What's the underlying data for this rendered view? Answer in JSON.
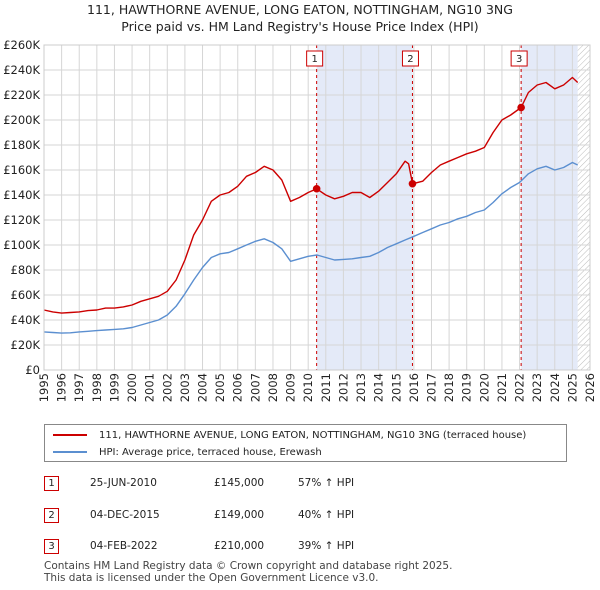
{
  "title_line1": "111, HAWTHORNE AVENUE, LONG EATON, NOTTINGHAM, NG10 3NG",
  "title_line2": "Price paid vs. HM Land Registry's House Price Index (HPI)",
  "colors": {
    "property": "#cc0000",
    "hpi": "#5b8fd0",
    "shade": "#e4eaf8",
    "grid": "#d6d6d6"
  },
  "chart_data": {
    "type": "line",
    "x_range": [
      1995,
      2026
    ],
    "y_range": [
      0,
      260000
    ],
    "y_ticks": [
      {
        "value": 0,
        "label": "£0"
      },
      {
        "value": 20000,
        "label": "£20K"
      },
      {
        "value": 40000,
        "label": "£40K"
      },
      {
        "value": 60000,
        "label": "£60K"
      },
      {
        "value": 80000,
        "label": "£80K"
      },
      {
        "value": 100000,
        "label": "£100K"
      },
      {
        "value": 120000,
        "label": "£120K"
      },
      {
        "value": 140000,
        "label": "£140K"
      },
      {
        "value": 160000,
        "label": "£160K"
      },
      {
        "value": 180000,
        "label": "£180K"
      },
      {
        "value": 200000,
        "label": "£200K"
      },
      {
        "value": 220000,
        "label": "£220K"
      },
      {
        "value": 240000,
        "label": "£240K"
      },
      {
        "value": 260000,
        "label": "£260K"
      }
    ],
    "x_ticks": [
      "1995",
      "1996",
      "1997",
      "1998",
      "1999",
      "2000",
      "2001",
      "2002",
      "2003",
      "2004",
      "2005",
      "2006",
      "2007",
      "2008",
      "2009",
      "2010",
      "2011",
      "2012",
      "2013",
      "2014",
      "2015",
      "2016",
      "2017",
      "2018",
      "2019",
      "2020",
      "2021",
      "2022",
      "2023",
      "2024",
      "2025",
      "2026"
    ],
    "shaded_ranges": [
      [
        2010.48,
        2015.92
      ],
      [
        2022.09,
        2025.3
      ]
    ],
    "future_hatch_start": 2025.3,
    "series": [
      {
        "name": "111, HAWTHORNE AVENUE, LONG EATON, NOTTINGHAM, NG10 3NG (terraced house)",
        "points": [
          [
            1995.0,
            48000
          ],
          [
            1995.5,
            46500
          ],
          [
            1996.0,
            45500
          ],
          [
            1996.5,
            46000
          ],
          [
            1997.0,
            46500
          ],
          [
            1997.5,
            47500
          ],
          [
            1998.0,
            48000
          ],
          [
            1998.5,
            49500
          ],
          [
            1999.0,
            49500
          ],
          [
            1999.5,
            50500
          ],
          [
            2000.0,
            52000
          ],
          [
            2000.5,
            55000
          ],
          [
            2001.0,
            57000
          ],
          [
            2001.5,
            59000
          ],
          [
            2002.0,
            63000
          ],
          [
            2002.5,
            72000
          ],
          [
            2003.0,
            88000
          ],
          [
            2003.5,
            108000
          ],
          [
            2004.0,
            120000
          ],
          [
            2004.5,
            135000
          ],
          [
            2005.0,
            140000
          ],
          [
            2005.5,
            142000
          ],
          [
            2006.0,
            147000
          ],
          [
            2006.5,
            155000
          ],
          [
            2007.0,
            158000
          ],
          [
            2007.5,
            163000
          ],
          [
            2008.0,
            160000
          ],
          [
            2008.5,
            152000
          ],
          [
            2009.0,
            135000
          ],
          [
            2009.5,
            138000
          ],
          [
            2010.0,
            142000
          ],
          [
            2010.48,
            145000
          ],
          [
            2011.0,
            140000
          ],
          [
            2011.5,
            137000
          ],
          [
            2012.0,
            139000
          ],
          [
            2012.5,
            142000
          ],
          [
            2013.0,
            142000
          ],
          [
            2013.5,
            138000
          ],
          [
            2014.0,
            143000
          ],
          [
            2014.5,
            150000
          ],
          [
            2015.0,
            157000
          ],
          [
            2015.5,
            167000
          ],
          [
            2015.7,
            165000
          ],
          [
            2015.92,
            149000
          ],
          [
            2016.5,
            151000
          ],
          [
            2017.0,
            158000
          ],
          [
            2017.5,
            164000
          ],
          [
            2018.0,
            167000
          ],
          [
            2018.5,
            170000
          ],
          [
            2019.0,
            173000
          ],
          [
            2019.5,
            175000
          ],
          [
            2020.0,
            178000
          ],
          [
            2020.5,
            190000
          ],
          [
            2021.0,
            200000
          ],
          [
            2021.5,
            204000
          ],
          [
            2022.09,
            210000
          ],
          [
            2022.5,
            222000
          ],
          [
            2023.0,
            228000
          ],
          [
            2023.5,
            230000
          ],
          [
            2024.0,
            225000
          ],
          [
            2024.5,
            228000
          ],
          [
            2025.0,
            234000
          ],
          [
            2025.3,
            230000
          ]
        ]
      },
      {
        "name": "HPI: Average price, terraced house, Erewash",
        "points": [
          [
            1995.0,
            30500
          ],
          [
            1995.5,
            30000
          ],
          [
            1996.0,
            29500
          ],
          [
            1996.5,
            29800
          ],
          [
            1997.0,
            30500
          ],
          [
            1997.5,
            31000
          ],
          [
            1998.0,
            31500
          ],
          [
            1998.5,
            32000
          ],
          [
            1999.0,
            32500
          ],
          [
            1999.5,
            33000
          ],
          [
            2000.0,
            34000
          ],
          [
            2000.5,
            36000
          ],
          [
            2001.0,
            38000
          ],
          [
            2001.5,
            40000
          ],
          [
            2002.0,
            44000
          ],
          [
            2002.5,
            51000
          ],
          [
            2003.0,
            61000
          ],
          [
            2003.5,
            72000
          ],
          [
            2004.0,
            82000
          ],
          [
            2004.5,
            90000
          ],
          [
            2005.0,
            93000
          ],
          [
            2005.5,
            94000
          ],
          [
            2006.0,
            97000
          ],
          [
            2006.5,
            100000
          ],
          [
            2007.0,
            103000
          ],
          [
            2007.5,
            105000
          ],
          [
            2008.0,
            102000
          ],
          [
            2008.5,
            97000
          ],
          [
            2009.0,
            87000
          ],
          [
            2009.5,
            89000
          ],
          [
            2010.0,
            91000
          ],
          [
            2010.5,
            92000
          ],
          [
            2011.0,
            90000
          ],
          [
            2011.5,
            88000
          ],
          [
            2012.0,
            88500
          ],
          [
            2012.5,
            89000
          ],
          [
            2013.0,
            90000
          ],
          [
            2013.5,
            91000
          ],
          [
            2014.0,
            94000
          ],
          [
            2014.5,
            98000
          ],
          [
            2015.0,
            101000
          ],
          [
            2015.5,
            104000
          ],
          [
            2016.0,
            107000
          ],
          [
            2016.5,
            110000
          ],
          [
            2017.0,
            113000
          ],
          [
            2017.5,
            116000
          ],
          [
            2018.0,
            118000
          ],
          [
            2018.5,
            121000
          ],
          [
            2019.0,
            123000
          ],
          [
            2019.5,
            126000
          ],
          [
            2020.0,
            128000
          ],
          [
            2020.5,
            134000
          ],
          [
            2021.0,
            141000
          ],
          [
            2021.5,
            146000
          ],
          [
            2022.0,
            150000
          ],
          [
            2022.5,
            157000
          ],
          [
            2023.0,
            161000
          ],
          [
            2023.5,
            163000
          ],
          [
            2024.0,
            160000
          ],
          [
            2024.5,
            162000
          ],
          [
            2025.0,
            166000
          ],
          [
            2025.3,
            164000
          ]
        ]
      }
    ],
    "sale_markers": [
      {
        "label": "1",
        "x": 2010.48,
        "y": 145000
      },
      {
        "label": "2",
        "x": 2015.92,
        "y": 149000
      },
      {
        "label": "3",
        "x": 2022.09,
        "y": 210000
      }
    ]
  },
  "legend": {
    "property_label": "111, HAWTHORNE AVENUE, LONG EATON, NOTTINGHAM, NG10 3NG (terraced house)",
    "hpi_label": "HPI: Average price, terraced house, Erewash"
  },
  "sales": [
    {
      "num": "1",
      "date": "25-JUN-2010",
      "price": "£145,000",
      "hpi": "57% ↑ HPI"
    },
    {
      "num": "2",
      "date": "04-DEC-2015",
      "price": "£149,000",
      "hpi": "40% ↑ HPI"
    },
    {
      "num": "3",
      "date": "04-FEB-2022",
      "price": "£210,000",
      "hpi": "39% ↑ HPI"
    }
  ],
  "footer_line1": "Contains HM Land Registry data © Crown copyright and database right 2025.",
  "footer_line2": "This data is licensed under the Open Government Licence v3.0."
}
